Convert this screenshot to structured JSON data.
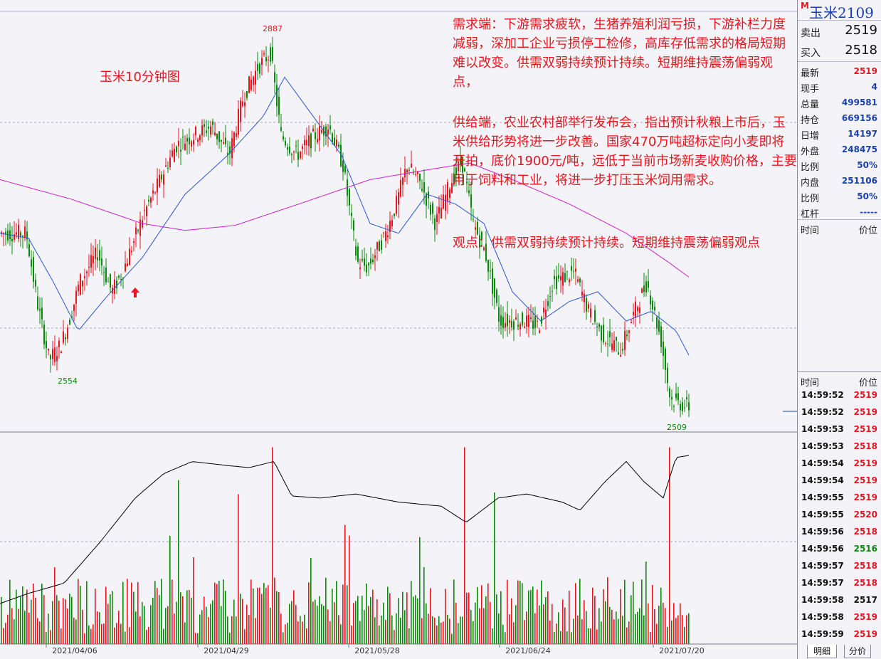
{
  "chart_data": {
    "type": "candlestick",
    "title": "玉米10分钟图",
    "annotations": {
      "high_label": "2887",
      "low_label": "2554",
      "last_low_label": "2509"
    },
    "x_tick_labels": [
      "2021/04/06",
      "2021/04/29",
      "2021/05/28",
      "2021/06/24",
      "2021/07/20"
    ],
    "y_range": [
      2495,
      2900
    ],
    "price_waypoints": [
      [
        0,
        2690
      ],
      [
        40,
        2690
      ],
      [
        55,
        2620
      ],
      [
        72,
        2560
      ],
      [
        88,
        2575
      ],
      [
        100,
        2600
      ],
      [
        115,
        2640
      ],
      [
        140,
        2670
      ],
      [
        160,
        2630
      ],
      [
        175,
        2650
      ],
      [
        205,
        2710
      ],
      [
        225,
        2740
      ],
      [
        250,
        2780
      ],
      [
        275,
        2790
      ],
      [
        300,
        2800
      ],
      [
        325,
        2770
      ],
      [
        345,
        2830
      ],
      [
        365,
        2860
      ],
      [
        383,
        2875
      ],
      [
        398,
        2790
      ],
      [
        420,
        2770
      ],
      [
        445,
        2790
      ],
      [
        465,
        2800
      ],
      [
        485,
        2760
      ],
      [
        505,
        2660
      ],
      [
        520,
        2655
      ],
      [
        545,
        2690
      ],
      [
        560,
        2720
      ],
      [
        575,
        2760
      ],
      [
        595,
        2740
      ],
      [
        615,
        2700
      ],
      [
        635,
        2740
      ],
      [
        652,
        2765
      ],
      [
        668,
        2700
      ],
      [
        685,
        2670
      ],
      [
        705,
        2600
      ],
      [
        740,
        2600
      ],
      [
        760,
        2595
      ],
      [
        780,
        2640
      ],
      [
        810,
        2650
      ],
      [
        830,
        2610
      ],
      [
        850,
        2585
      ],
      [
        875,
        2570
      ],
      [
        895,
        2610
      ],
      [
        912,
        2640
      ],
      [
        932,
        2580
      ],
      [
        945,
        2520
      ],
      [
        960,
        2515
      ],
      [
        968,
        2512
      ]
    ],
    "ma_short_waypoints": [
      [
        0,
        2690
      ],
      [
        40,
        2685
      ],
      [
        75,
        2640
      ],
      [
        110,
        2590
      ],
      [
        150,
        2625
      ],
      [
        200,
        2665
      ],
      [
        260,
        2730
      ],
      [
        320,
        2770
      ],
      [
        370,
        2810
      ],
      [
        400,
        2850
      ],
      [
        440,
        2810
      ],
      [
        480,
        2770
      ],
      [
        520,
        2700
      ],
      [
        560,
        2690
      ],
      [
        600,
        2730
      ],
      [
        640,
        2720
      ],
      [
        680,
        2700
      ],
      [
        720,
        2630
      ],
      [
        760,
        2600
      ],
      [
        800,
        2620
      ],
      [
        840,
        2630
      ],
      [
        880,
        2600
      ],
      [
        915,
        2610
      ],
      [
        950,
        2590
      ],
      [
        968,
        2565
      ]
    ],
    "ma_long_waypoints": [
      [
        0,
        2745
      ],
      [
        100,
        2725
      ],
      [
        200,
        2700
      ],
      [
        260,
        2693
      ],
      [
        330,
        2698
      ],
      [
        420,
        2720
      ],
      [
        520,
        2745
      ],
      [
        600,
        2755
      ],
      [
        660,
        2762
      ],
      [
        720,
        2745
      ],
      [
        800,
        2720
      ],
      [
        880,
        2690
      ],
      [
        940,
        2660
      ],
      [
        968,
        2645
      ]
    ],
    "volume_line_waypoints": [
      [
        0,
        0.2
      ],
      [
        40,
        0.25
      ],
      [
        90,
        0.3
      ],
      [
        140,
        0.5
      ],
      [
        190,
        0.72
      ],
      [
        230,
        0.84
      ],
      [
        270,
        0.9
      ],
      [
        320,
        0.88
      ],
      [
        350,
        0.87
      ],
      [
        385,
        0.9
      ],
      [
        410,
        0.73
      ],
      [
        450,
        0.72
      ],
      [
        500,
        0.74
      ],
      [
        560,
        0.7
      ],
      [
        620,
        0.68
      ],
      [
        655,
        0.6
      ],
      [
        700,
        0.72
      ],
      [
        740,
        0.74
      ],
      [
        790,
        0.7
      ],
      [
        815,
        0.66
      ],
      [
        850,
        0.8
      ],
      [
        880,
        0.9
      ],
      [
        905,
        0.8
      ],
      [
        932,
        0.72
      ],
      [
        950,
        0.92
      ],
      [
        968,
        0.93
      ]
    ]
  },
  "annotation_text": {
    "demand": "需求端：下游需求疲软，生猪养殖利润亏损，下游补栏力度减弱，深加工企业亏损停工检修，高库存低需求的格局短期难以改变。供需双弱持续预计持续。短期维持震荡偏弱观点，",
    "supply": "供给端，农业农村部举行发布会，指出预计秋粮上市后，玉米供给形势将进一步改善。国家470万吨超标定向小麦即将开拍，底价1900元/吨，远低于当前市场新麦收购价格，主要用于饲料和工业，将进一步打压玉米饲用需求。",
    "view": "观点：供需双弱持续预计持续。短期维持震荡偏弱观点"
  },
  "panel": {
    "market_badge": "M",
    "contract_name": "玉米2109",
    "ask_label": "卖出",
    "ask_value": "2519",
    "bid_label": "买入",
    "bid_value": "2518",
    "stats": [
      {
        "label": "最新",
        "value": "2519",
        "color": "#e8141e"
      },
      {
        "label": "现手",
        "value": "4",
        "color": "#1a3fb0"
      },
      {
        "label": "总量",
        "value": "499581",
        "color": "#1a3fb0"
      },
      {
        "label": "持仓",
        "value": "669156",
        "color": "#1a3fb0"
      },
      {
        "label": "日增",
        "value": "14197",
        "color": "#1a3fb0"
      },
      {
        "label": "外盘",
        "value": "248475",
        "color": "#1a3fb0"
      },
      {
        "label": "比例",
        "value": "50%",
        "color": "#1a3fb0"
      },
      {
        "label": "内盘",
        "value": "251106",
        "color": "#1a3fb0"
      },
      {
        "label": "比例",
        "value": "50%",
        "color": "#1a3fb0"
      },
      {
        "label": "杠杆",
        "value": "-----",
        "color": "#1a3fb0"
      }
    ],
    "time_header": "时间",
    "price_header": "价位",
    "ticks": [
      {
        "time": "14:59:52",
        "price": "2519",
        "color": "#e8141e"
      },
      {
        "time": "14:59:52",
        "price": "2519",
        "color": "#e8141e"
      },
      {
        "time": "14:59:53",
        "price": "2519",
        "color": "#e8141e"
      },
      {
        "time": "14:59:53",
        "price": "2518",
        "color": "#e8141e"
      },
      {
        "time": "14:59:54",
        "price": "2519",
        "color": "#e8141e"
      },
      {
        "time": "14:59:54",
        "price": "2519",
        "color": "#e8141e"
      },
      {
        "time": "14:59:55",
        "price": "2519",
        "color": "#e8141e"
      },
      {
        "time": "14:59:55",
        "price": "2520",
        "color": "#e8141e"
      },
      {
        "time": "14:59:56",
        "price": "2518",
        "color": "#e8141e"
      },
      {
        "time": "14:59:56",
        "price": "2516",
        "color": "#0a8a0a"
      },
      {
        "time": "14:59:57",
        "price": "2518",
        "color": "#e8141e"
      },
      {
        "time": "14:59:57",
        "price": "2518",
        "color": "#e8141e"
      },
      {
        "time": "14:59:58",
        "price": "2517",
        "color": "#111111"
      },
      {
        "time": "14:59:58",
        "price": "2519",
        "color": "#e8141e"
      },
      {
        "time": "14:59:59",
        "price": "2519",
        "color": "#e8141e"
      }
    ],
    "tab_detail": "明细",
    "tab_price": "分价"
  },
  "colors": {
    "up": "#e8141e",
    "down": "#0a8a0a",
    "ma_short": "#2a55d8",
    "ma_long": "#d01ec8",
    "volume_line": "#000000"
  }
}
